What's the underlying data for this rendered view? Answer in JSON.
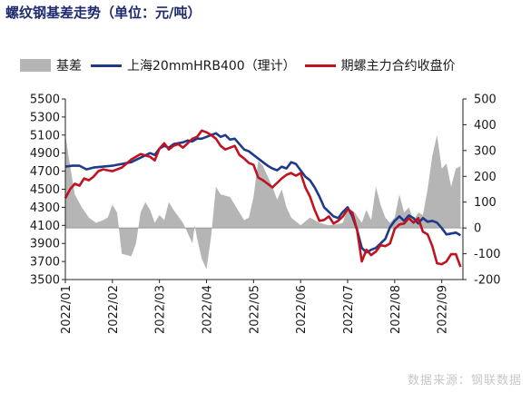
{
  "title": "螺纹钢基差走势（单位：元/吨）",
  "source": "数据来源：钢联数据",
  "colors": {
    "basis": "#b5b5b5",
    "spot": "#1e3a8a",
    "futures": "#c0121f"
  },
  "legend": [
    {
      "key": "basis",
      "label": "基差",
      "kind": "area"
    },
    {
      "key": "spot",
      "label": "上海20mmHRB400（理计）",
      "kind": "line"
    },
    {
      "key": "futures",
      "label": "期螺主力合约收盘价",
      "kind": "line"
    }
  ],
  "chart_data": {
    "type": "line",
    "x_ticks": [
      "2022/01",
      "2022/02",
      "2022/03",
      "2022/04",
      "2022/05",
      "2022/06",
      "2022/07",
      "2022/08",
      "2022/09"
    ],
    "y_left": {
      "min": 3500,
      "max": 5500,
      "ticks": [
        3500,
        3700,
        3900,
        4100,
        4300,
        4500,
        4700,
        4900,
        5100,
        5300,
        5500
      ]
    },
    "y_right": {
      "min": -200,
      "max": 500,
      "ticks": [
        -200,
        -100,
        0,
        100,
        200,
        300,
        400,
        500
      ]
    },
    "x_range": [
      1,
      9.45
    ],
    "series": [
      {
        "name": "基差",
        "axis": "right",
        "type": "area",
        "x": [
          1.0,
          1.1,
          1.2,
          1.35,
          1.5,
          1.65,
          1.8,
          1.9,
          2.0,
          2.1,
          2.2,
          2.4,
          2.5,
          2.6,
          2.7,
          2.8,
          2.9,
          3.0,
          3.1,
          3.2,
          3.3,
          3.5,
          3.7,
          3.75,
          3.8,
          3.9,
          4.0,
          4.1,
          4.2,
          4.3,
          4.5,
          4.7,
          4.8,
          4.9,
          5.0,
          5.1,
          5.2,
          5.3,
          5.4,
          5.5,
          5.6,
          5.7,
          5.8,
          6.0,
          6.2,
          6.4,
          6.6,
          6.8,
          6.9,
          7.0,
          7.15,
          7.3,
          7.4,
          7.5,
          7.6,
          7.7,
          7.8,
          7.9,
          8.0,
          8.1,
          8.2,
          8.3,
          8.4,
          8.5,
          8.6,
          8.7,
          8.8,
          8.9,
          9.0,
          9.1,
          9.2,
          9.3,
          9.4
        ],
        "values": [
          360,
          240,
          130,
          80,
          40,
          20,
          30,
          40,
          90,
          60,
          -100,
          -110,
          -60,
          60,
          100,
          70,
          20,
          50,
          30,
          100,
          70,
          20,
          -60,
          10,
          -40,
          -120,
          -160,
          -30,
          160,
          130,
          120,
          60,
          30,
          40,
          120,
          260,
          240,
          200,
          160,
          110,
          150,
          80,
          40,
          10,
          40,
          20,
          10,
          15,
          20,
          80,
          60,
          20,
          70,
          30,
          160,
          90,
          40,
          20,
          40,
          130,
          60,
          80,
          30,
          60,
          50,
          150,
          280,
          360,
          230,
          250,
          160,
          230,
          240
        ]
      },
      {
        "name": "上海20mmHRB400（理计）",
        "axis": "left",
        "type": "line",
        "x": [
          1.0,
          1.15,
          1.3,
          1.45,
          1.6,
          1.8,
          2.0,
          2.2,
          2.4,
          2.6,
          2.8,
          2.9,
          3.0,
          3.1,
          3.2,
          3.3,
          3.4,
          3.5,
          3.6,
          3.7,
          3.8,
          3.9,
          4.0,
          4.1,
          4.2,
          4.3,
          4.4,
          4.5,
          4.6,
          4.7,
          4.8,
          4.9,
          5.0,
          5.1,
          5.2,
          5.3,
          5.4,
          5.5,
          5.6,
          5.7,
          5.8,
          5.9,
          6.0,
          6.1,
          6.2,
          6.3,
          6.4,
          6.5,
          6.6,
          6.7,
          6.8,
          6.9,
          7.0,
          7.1,
          7.2,
          7.3,
          7.4,
          7.5,
          7.6,
          7.7,
          7.8,
          7.9,
          8.0,
          8.1,
          8.2,
          8.3,
          8.4,
          8.5,
          8.6,
          8.7,
          8.8,
          8.9,
          9.0,
          9.1,
          9.2,
          9.3,
          9.4
        ],
        "values": [
          4750,
          4760,
          4760,
          4720,
          4740,
          4750,
          4760,
          4780,
          4800,
          4850,
          4900,
          4880,
          4950,
          4980,
          4960,
          5000,
          5010,
          5020,
          5040,
          5030,
          5060,
          5060,
          5080,
          5100,
          5120,
          5080,
          5100,
          5050,
          5060,
          5000,
          4940,
          4920,
          4880,
          4840,
          4800,
          4760,
          4730,
          4710,
          4750,
          4730,
          4800,
          4780,
          4710,
          4640,
          4600,
          4520,
          4420,
          4300,
          4250,
          4200,
          4180,
          4250,
          4300,
          4200,
          4050,
          3850,
          3800,
          3830,
          3850,
          3900,
          3950,
          4080,
          4150,
          4200,
          4150,
          4210,
          4180,
          4120,
          4180,
          4140,
          4150,
          4130,
          4070,
          4000,
          4010,
          4020,
          3990
        ]
      },
      {
        "name": "期螺主力合约收盘价",
        "axis": "left",
        "type": "line",
        "x": [
          1.0,
          1.1,
          1.2,
          1.3,
          1.4,
          1.5,
          1.6,
          1.7,
          1.8,
          2.0,
          2.2,
          2.4,
          2.6,
          2.8,
          2.9,
          3.0,
          3.1,
          3.2,
          3.3,
          3.4,
          3.5,
          3.6,
          3.7,
          3.8,
          3.9,
          4.0,
          4.1,
          4.2,
          4.3,
          4.4,
          4.5,
          4.6,
          4.7,
          4.8,
          4.9,
          5.0,
          5.1,
          5.2,
          5.3,
          5.4,
          5.5,
          5.6,
          5.7,
          5.8,
          5.9,
          6.0,
          6.1,
          6.2,
          6.3,
          6.4,
          6.5,
          6.6,
          6.7,
          6.8,
          6.9,
          7.0,
          7.1,
          7.2,
          7.3,
          7.4,
          7.5,
          7.6,
          7.7,
          7.8,
          7.9,
          8.0,
          8.1,
          8.2,
          8.3,
          8.4,
          8.5,
          8.6,
          8.7,
          8.8,
          8.9,
          9.0,
          9.1,
          9.2,
          9.3,
          9.4
        ],
        "values": [
          4400,
          4500,
          4560,
          4540,
          4620,
          4600,
          4640,
          4700,
          4720,
          4700,
          4740,
          4830,
          4890,
          4860,
          4820,
          4950,
          5010,
          4940,
          4980,
          5000,
          4960,
          5010,
          5060,
          5080,
          5150,
          5130,
          5100,
          5060,
          4980,
          4940,
          4960,
          4980,
          4880,
          4840,
          4790,
          4770,
          4630,
          4600,
          4560,
          4520,
          4570,
          4620,
          4660,
          4680,
          4650,
          4680,
          4520,
          4420,
          4270,
          4150,
          4160,
          4200,
          4120,
          4150,
          4200,
          4280,
          4240,
          4050,
          3700,
          3830,
          3770,
          3810,
          3880,
          3870,
          3900,
          4060,
          4110,
          4120,
          4180,
          4130,
          4180,
          4030,
          4000,
          3870,
          3680,
          3670,
          3700,
          3780,
          3780,
          3640
        ]
      }
    ]
  }
}
